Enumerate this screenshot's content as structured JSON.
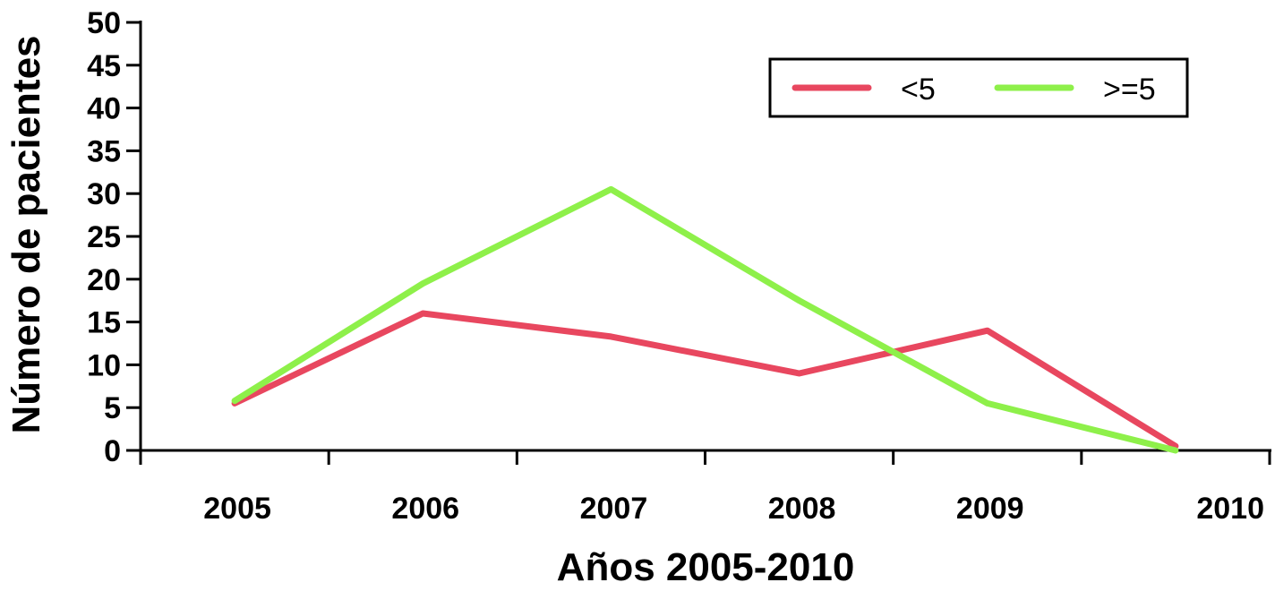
{
  "chart_data": {
    "type": "line",
    "categories": [
      "2005",
      "2006",
      "2007",
      "2008",
      "2009",
      "2010"
    ],
    "xlabel": "Años 2005-2010",
    "ylabel": "Número de pacientes",
    "ylim": [
      0,
      50
    ],
    "yticks": [
      "0",
      "5",
      "10",
      "15",
      "20",
      "25",
      "30",
      "35",
      "40",
      "45",
      "50"
    ],
    "grid": false,
    "legend_position": "top-right",
    "series": [
      {
        "name": "<5",
        "color": "#e8475f",
        "values": [
          5.5,
          16,
          13.3,
          9,
          14,
          0.5
        ]
      },
      {
        "name": ">=5",
        "color": "#8ef04a",
        "values": [
          5.8,
          19.5,
          30.5,
          17.5,
          5.5,
          0
        ]
      }
    ]
  }
}
